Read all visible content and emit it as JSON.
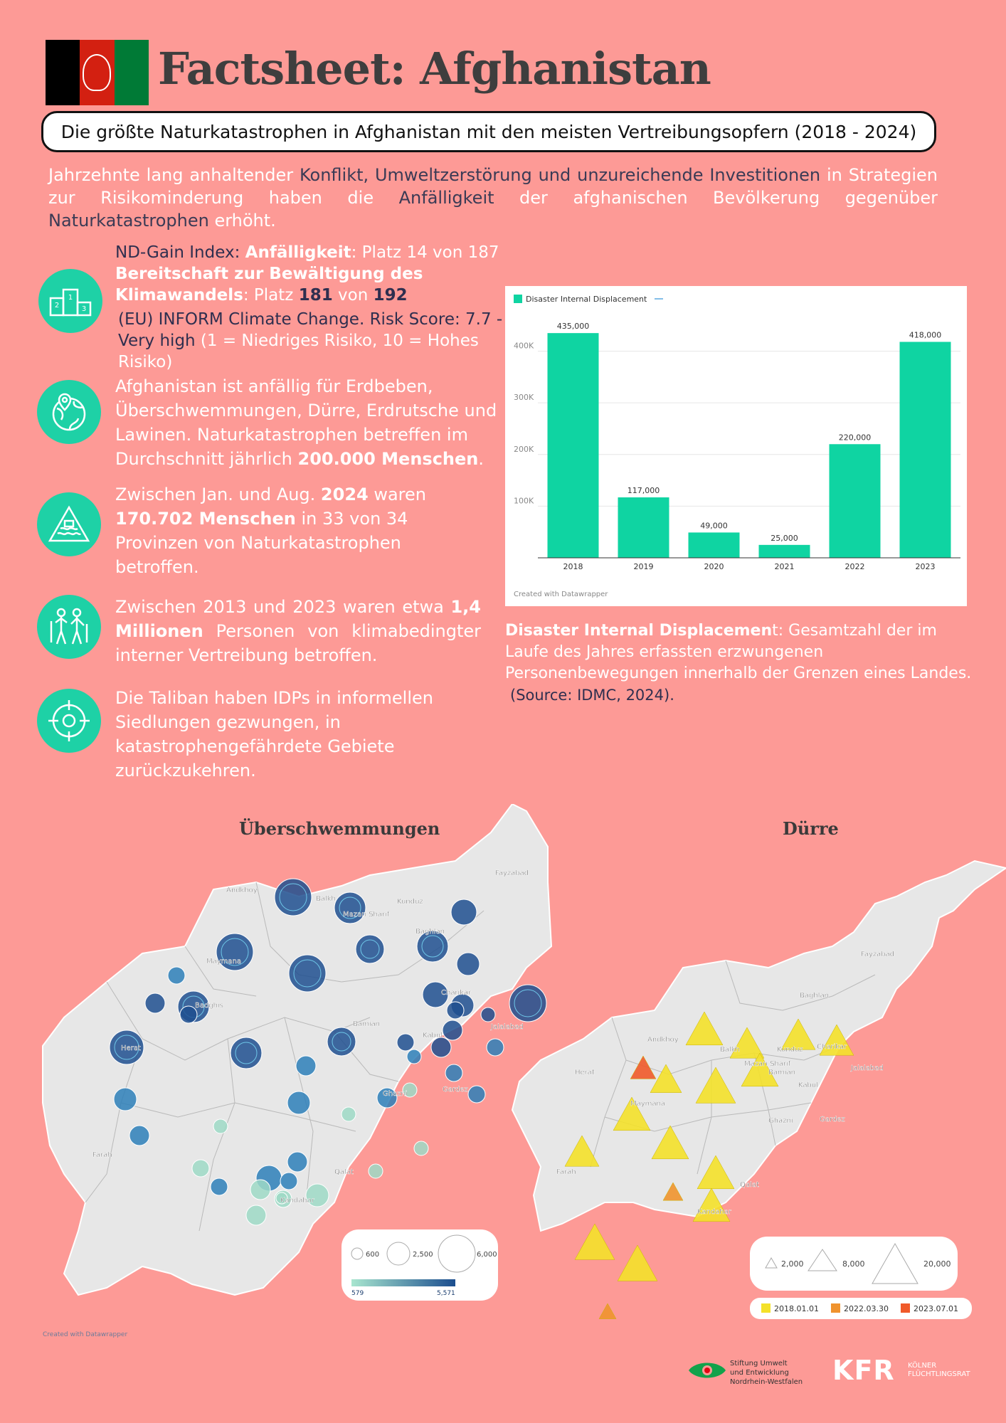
{
  "header": {
    "title": "Factsheet: Afghanistan",
    "subtitle": "Die größte Naturkatastrophen in Afghanistan mit den meisten Vertreibungsopfern (2018 - 2024)"
  },
  "intro": {
    "p1": "Jahrzehnte lang anhaltender ",
    "p2": "Konflikt, Umweltzerstörung und unzureichende Investitionen",
    "p3": " in Strategien zur Risikominderung haben die ",
    "p4": "Anfälligkeit",
    "p5": " der afghanischen Bevölkerung gegenüber ",
    "p6": "Naturkatastrophen",
    "p7": " erhöht."
  },
  "facts": {
    "f1_a": "ND-Gain Index: ",
    "f1_b": "Anfälligkeit",
    "f1_c": ": Platz 14 von 187",
    "f1_d": "Bereitschaft zur Bewältigung des Klimawandels",
    "f1_e": ": Platz ",
    "f1_f": "181",
    "f1_g": " von ",
    "f1_h": "192",
    "f1_i": "(EU) INFORM Climate Change. Risk Score: 7.7 - Very high",
    "f1_j": " (1 = Niedriges Risiko, 10 = Hohes Risiko)",
    "f2_a": "Afghanistan ist anfällig für Erdbeben, Überschwemmungen, Dürre",
    "f2_b": ", Erdrutsche und Lawinen. Naturkatastrophen betreffen im Durchschnitt jährlich ",
    "f2_c": "200.000 Menschen",
    "f2_d": ".",
    "f3_a": "Zwischen Jan. und Aug. ",
    "f3_b": "2024",
    "f3_c": " waren ",
    "f3_d": "170.702 Menschen",
    "f3_e": " in 33 von 34 Provinzen von Naturkatastrophen betroffen.",
    "f4_a": "Zwischen 2013 und 2023 waren etwa ",
    "f4_b": "1,4 Millionen",
    "f4_c": " Personen von klimabedingter interner Vertreibung betroffen.",
    "f5": "Die Taliban haben IDPs in informellen Siedlungen gezwungen, in katastrophengefährdete Gebiete zurückzukehren."
  },
  "chart_note": {
    "bold": "Disaster Internal Displacemen",
    "rest": "t: Gesamtzahl der im Laufe des Jahres erfassten erzwungenen Personenbewegungen innerhalb der Grenzen eines Landes.",
    "source": "(Source: IDMC, 2024)."
  },
  "chart_data": {
    "type": "bar",
    "title": "",
    "legend": "Disaster Internal Displacement",
    "categories": [
      "2018",
      "2019",
      "2020",
      "2021",
      "2022",
      "2023"
    ],
    "values": [
      435000,
      117000,
      49000,
      25000,
      220000,
      418000
    ],
    "value_labels": [
      "435,000",
      "117,000",
      "49,000",
      "25,000",
      "220,000",
      "418,000"
    ],
    "y_ticks": [
      "100K",
      "200K",
      "300K",
      "400K"
    ],
    "ylim": [
      0,
      460000
    ],
    "color": "#0fd4a2",
    "credit": "Created with Datawrapper"
  },
  "maps": {
    "flood_title": "Überschwemmungen",
    "drought_title": "Dürre",
    "flood_places": [
      "Andkhoy",
      "Balkh",
      "Mazari Sharif",
      "Kunduz",
      "Fayzabad",
      "Baghlan",
      "Maymana",
      "Badghis",
      "Charikar",
      "Bamian",
      "Jalalabad",
      "Herat",
      "Kabul",
      "Gardez",
      "Ghazni",
      "Farah",
      "Qalat",
      "Kandahar"
    ],
    "drought_places": [
      "Andkhoy",
      "Balkh",
      "Mazari Sharif",
      "Kunduz",
      "Fayzabad",
      "Baghlan",
      "Maymana",
      "Charikar",
      "Jalalabad",
      "Herat",
      "Bamian",
      "Kabul",
      "Ghazni",
      "Gardez",
      "Farah",
      "Qalat",
      "Kandahar"
    ],
    "flood_legend_sizes": [
      "600",
      "2,500",
      "6,000"
    ],
    "flood_legend_range": [
      "579",
      "5,571"
    ],
    "drought_legend_sizes": [
      "2,000",
      "8,000",
      "20,000"
    ],
    "drought_legend_dates": [
      "2018.01.01",
      "2022.03.30",
      "2023.07.01"
    ],
    "colors": {
      "flood_dark": "#1e4f8f",
      "flood_light": "#9ed9c5",
      "drought_yellow": "#f4e12a",
      "drought_orange": "#f0932e",
      "drought_red": "#f05a2a"
    },
    "credit": "Created with Datawrapper"
  },
  "logos": {
    "stiftung": "Stiftung Umwelt\nund Entwicklung\nNordrhein-Westfalen",
    "kfr_mark": "KFR",
    "kfr_name": "KÖLNER\nFLÜCHTLINGSRAT"
  }
}
